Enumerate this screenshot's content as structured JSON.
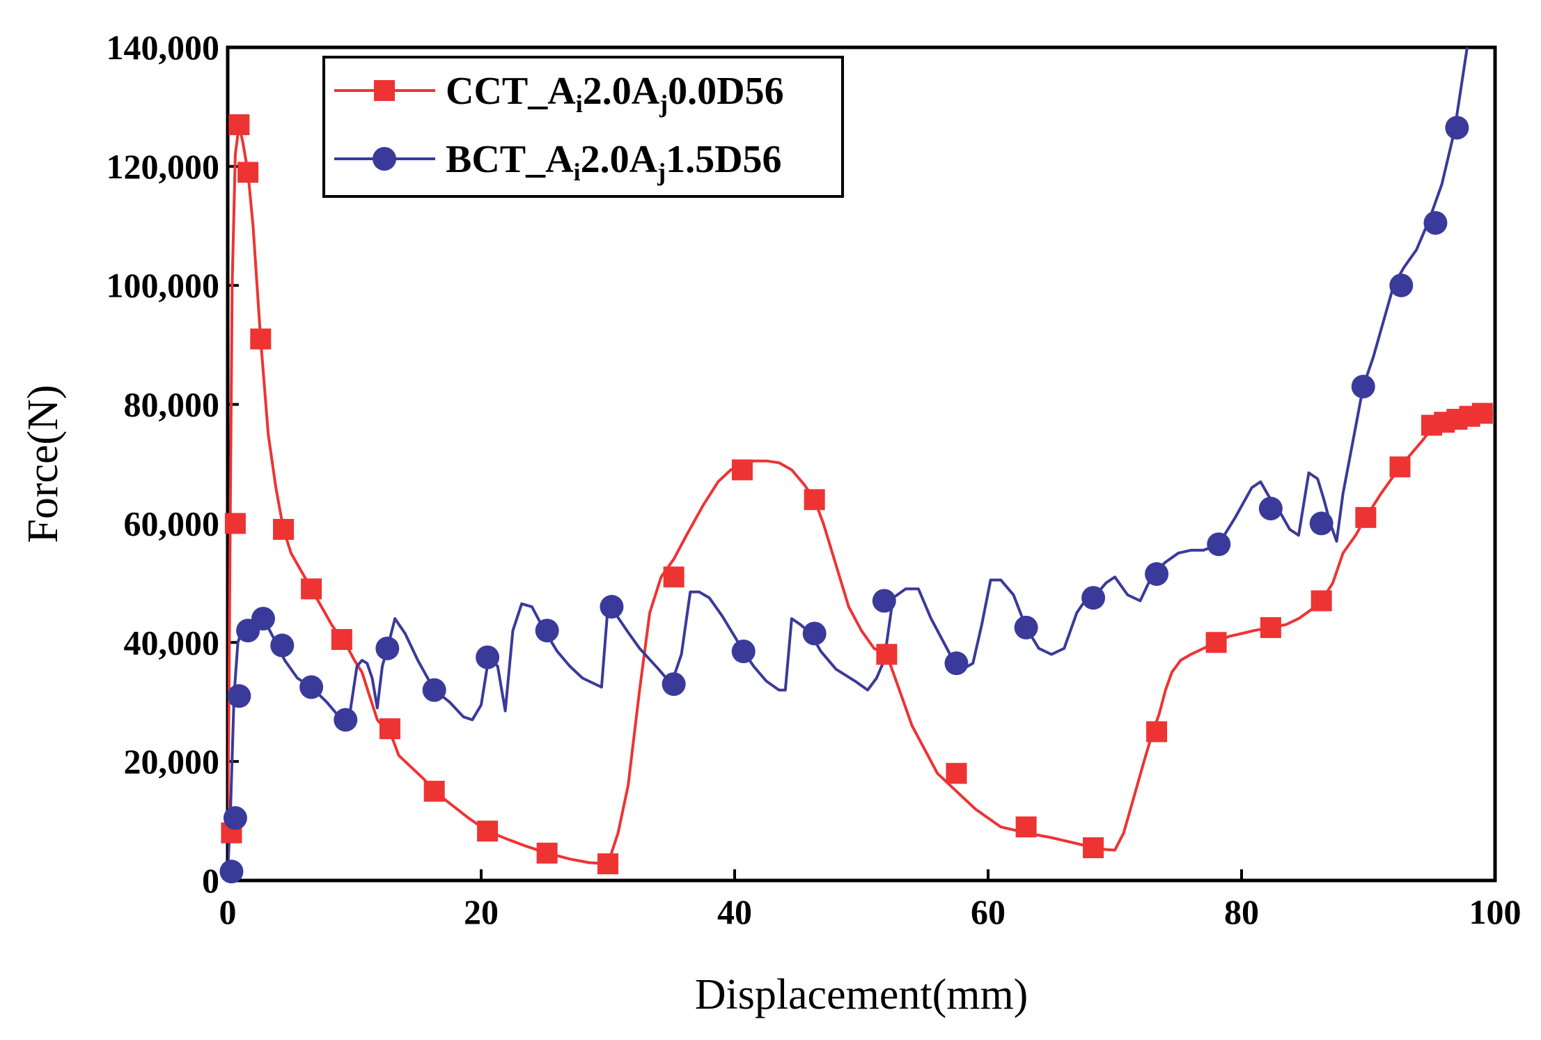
{
  "chart_data": {
    "type": "line",
    "title": "",
    "xlabel": "Displacement(mm)",
    "ylabel": "Force(N)",
    "xlim": [
      0,
      100
    ],
    "ylim": [
      0,
      140000
    ],
    "xticks": [
      0,
      20,
      40,
      60,
      80,
      100
    ],
    "yticks": [
      0,
      20000,
      40000,
      60000,
      80000,
      100000,
      120000,
      140000
    ],
    "xtick_labels": [
      "0",
      "20",
      "40",
      "60",
      "80",
      "100"
    ],
    "ytick_labels": [
      "0",
      "20,000",
      "40,000",
      "60,000",
      "80,000",
      "100,000",
      "120,000",
      "140,000"
    ],
    "grid": false,
    "legend_position": "top-left",
    "series": [
      {
        "name": "CCT_Ai2.0Aj0.0D56",
        "legend_parts": [
          {
            "text": "CCT_A",
            "sub": false
          },
          {
            "text": "i",
            "sub": true
          },
          {
            "text": "2.0A",
            "sub": false
          },
          {
            "text": "j",
            "sub": true
          },
          {
            "text": "0.0D56",
            "sub": false
          }
        ],
        "color": "#ee3333",
        "marker": "square",
        "x": [
          0,
          0.1,
          0.2,
          0.35,
          0.6,
          0.9,
          1.2,
          1.6,
          2.0,
          2.6,
          3.2,
          3.8,
          4.4,
          5.0,
          5.8,
          6.6,
          7.4,
          8.2,
          9.0,
          9.5,
          10.0,
          10.6,
          11.2,
          11.8,
          12.4,
          12.8,
          13.5,
          14.5,
          15.5,
          16.3,
          17.5,
          19.0,
          20.5,
          22.0,
          23.5,
          25.2,
          27.0,
          28.5,
          30.0,
          30.8,
          31.6,
          32.5,
          33.3,
          34.2,
          35.2,
          36.2,
          37.5,
          38.7,
          39.7,
          40.6,
          41.5,
          42.5,
          43.5,
          44.5,
          45.5,
          46.3,
          47.0,
          48.0,
          49.0,
          50.0,
          51.0,
          52.0,
          53.0,
          54.0,
          55.0,
          56.0,
          57.5,
          59.0,
          61.0,
          63.0,
          65.0,
          67.0,
          68.3,
          69.3,
          70.0,
          70.7,
          71.5,
          72.3,
          73.0,
          73.5,
          74.0,
          74.5,
          75.2,
          76.0,
          77.0,
          78.0,
          79.0,
          80.0,
          81.0,
          82.3,
          83.5,
          84.5,
          85.5,
          86.3,
          87.2,
          88.0,
          89.0,
          89.8,
          91.0,
          92.5,
          93.5,
          94.3,
          95.0,
          96.0,
          97.0,
          98.0,
          99.0,
          99.8
        ],
        "y": [
          8000,
          30000,
          60000,
          100000,
          122000,
          127000,
          124000,
          119000,
          110000,
          91000,
          75000,
          66000,
          59000,
          55000,
          52000,
          49000,
          46000,
          43000,
          40500,
          39000,
          37000,
          35000,
          31000,
          27000,
          25500,
          25000,
          21000,
          19000,
          17000,
          15000,
          13000,
          10500,
          8300,
          7000,
          5800,
          4600,
          3600,
          3000,
          2800,
          8000,
          16000,
          32000,
          45000,
          51000,
          54000,
          58000,
          63000,
          67000,
          69000,
          69800,
          70500,
          70500,
          70200,
          69000,
          66500,
          64000,
          60000,
          53000,
          46000,
          42000,
          39000,
          38000,
          32000,
          26000,
          22000,
          18000,
          15000,
          12000,
          9000,
          8000,
          7200,
          6200,
          5500,
          5200,
          5100,
          8000,
          14000,
          20000,
          25000,
          28000,
          32000,
          35000,
          37000,
          38000,
          39000,
          40000,
          41000,
          41500,
          42000,
          42500,
          43000,
          44000,
          45500,
          47000,
          50000,
          55000,
          58000,
          61000,
          65000,
          69500,
          72000,
          74000,
          76000,
          77000,
          77500,
          78000,
          78500,
          78500
        ],
        "marker_x": [
          0.3,
          0.6,
          0.9,
          1.6,
          2.6,
          4.4,
          6.6,
          9.0,
          12.8,
          16.3,
          20.5,
          25.2,
          30.0,
          35.2,
          40.6,
          46.3,
          52.0,
          57.5,
          63.0,
          68.3,
          73.3,
          78.0,
          82.3,
          86.3,
          89.8,
          92.5,
          95.0,
          96.0,
          97.0,
          98.0,
          99.0
        ],
        "marker_y": [
          8000,
          60000,
          127000,
          119000,
          91000,
          59000,
          49000,
          40500,
          25500,
          15000,
          8300,
          4600,
          2800,
          51000,
          69000,
          64000,
          38000,
          18000,
          9000,
          5500,
          25000,
          40000,
          42500,
          47000,
          61000,
          69500,
          76500,
          77000,
          77500,
          78000,
          78500
        ]
      },
      {
        "name": "BCT_Ai2.0Aj1.5D56",
        "legend_parts": [
          {
            "text": "BCT_A",
            "sub": false
          },
          {
            "text": "i",
            "sub": true
          },
          {
            "text": "2.0A",
            "sub": false
          },
          {
            "text": "j",
            "sub": true
          },
          {
            "text": "1.5D56",
            "sub": false
          }
        ],
        "color": "#3a3a9a",
        "marker": "circle",
        "x": [
          0,
          0.2,
          0.5,
          0.8,
          1.2,
          1.6,
          2.0,
          2.6,
          3.2,
          3.8,
          4.5,
          5.5,
          6.6,
          7.8,
          9.0,
          9.6,
          10.2,
          10.6,
          11.0,
          11.4,
          11.8,
          12.2,
          12.6,
          13.2,
          14.0,
          15.0,
          16.3,
          17.5,
          18.6,
          19.3,
          20.0,
          20.6,
          21.3,
          21.9,
          22.5,
          23.2,
          24.0,
          25.0,
          26.0,
          27.0,
          28.0,
          29.5,
          30.0,
          30.7,
          31.5,
          32.5,
          34.0,
          35.0,
          35.8,
          36.5,
          37.2,
          38.0,
          39.0,
          40.0,
          40.7,
          41.5,
          42.5,
          43.5,
          44.0,
          44.5,
          45.2,
          46.0,
          46.8,
          48.0,
          49.5,
          50.5,
          51.2,
          51.8,
          52.5,
          53.5,
          54.5,
          55.5,
          56.5,
          57.5,
          58.0,
          58.8,
          59.5,
          60.2,
          61.0,
          62.0,
          63.0,
          64.0,
          65.0,
          66.0,
          67.0,
          67.8,
          68.5,
          69.3,
          70.0,
          71.0,
          72.0,
          73.0,
          74.0,
          75.0,
          76.0,
          77.0,
          78.2,
          79.5,
          80.8,
          81.5,
          82.3,
          83.0,
          83.8,
          84.5,
          85.3,
          86.0,
          86.5,
          87.0,
          87.5,
          88.0,
          88.8,
          89.6,
          90.4,
          91.2,
          92.0,
          92.8,
          93.8,
          94.8,
          95.8,
          96.8,
          97.8
        ],
        "y": [
          1500,
          10000,
          31000,
          40000,
          42500,
          43000,
          43500,
          44500,
          42500,
          40000,
          37000,
          34000,
          32500,
          30000,
          27000,
          27500,
          36000,
          37000,
          36500,
          34000,
          29000,
          36000,
          39000,
          44000,
          41500,
          37000,
          32000,
          30000,
          27500,
          27000,
          29500,
          37500,
          36000,
          28500,
          42000,
          46500,
          46000,
          42000,
          38500,
          36000,
          34000,
          32500,
          46000,
          44500,
          42000,
          39000,
          35500,
          33000,
          38000,
          48500,
          48500,
          47500,
          44500,
          41000,
          38500,
          36000,
          33500,
          32000,
          32000,
          44000,
          43000,
          41500,
          38500,
          35500,
          33500,
          32000,
          34000,
          37000,
          47500,
          49000,
          49000,
          44000,
          40000,
          36000,
          35500,
          36500,
          43000,
          50500,
          50500,
          48000,
          42500,
          39000,
          38000,
          39000,
          45000,
          47500,
          48000,
          50000,
          51000,
          48000,
          47000,
          51500,
          53500,
          55000,
          55500,
          55500,
          56500,
          61000,
          66000,
          67000,
          64000,
          62000,
          59000,
          58000,
          68500,
          67500,
          64000,
          60000,
          57000,
          65000,
          74000,
          83000,
          88000,
          94000,
          100000,
          103000,
          106000,
          111000,
          117000,
          126000,
          140000
        ],
        "marker_x": [
          0.3,
          0.6,
          0.9,
          1.6,
          2.8,
          4.3,
          6.6,
          9.3,
          12.6,
          16.3,
          20.5,
          25.2,
          30.3,
          35.2,
          40.7,
          46.3,
          51.8,
          57.5,
          63.0,
          68.3,
          73.3,
          78.2,
          82.3,
          86.3,
          89.6,
          92.6,
          95.3,
          97.0
        ],
        "marker_y": [
          1500,
          10500,
          31000,
          42000,
          44000,
          39500,
          32500,
          27000,
          39000,
          32000,
          37500,
          42000,
          46000,
          33000,
          38500,
          41500,
          47000,
          36500,
          42500,
          47500,
          51500,
          56500,
          62500,
          60000,
          83000,
          100000,
          110500,
          126500
        ]
      }
    ]
  }
}
